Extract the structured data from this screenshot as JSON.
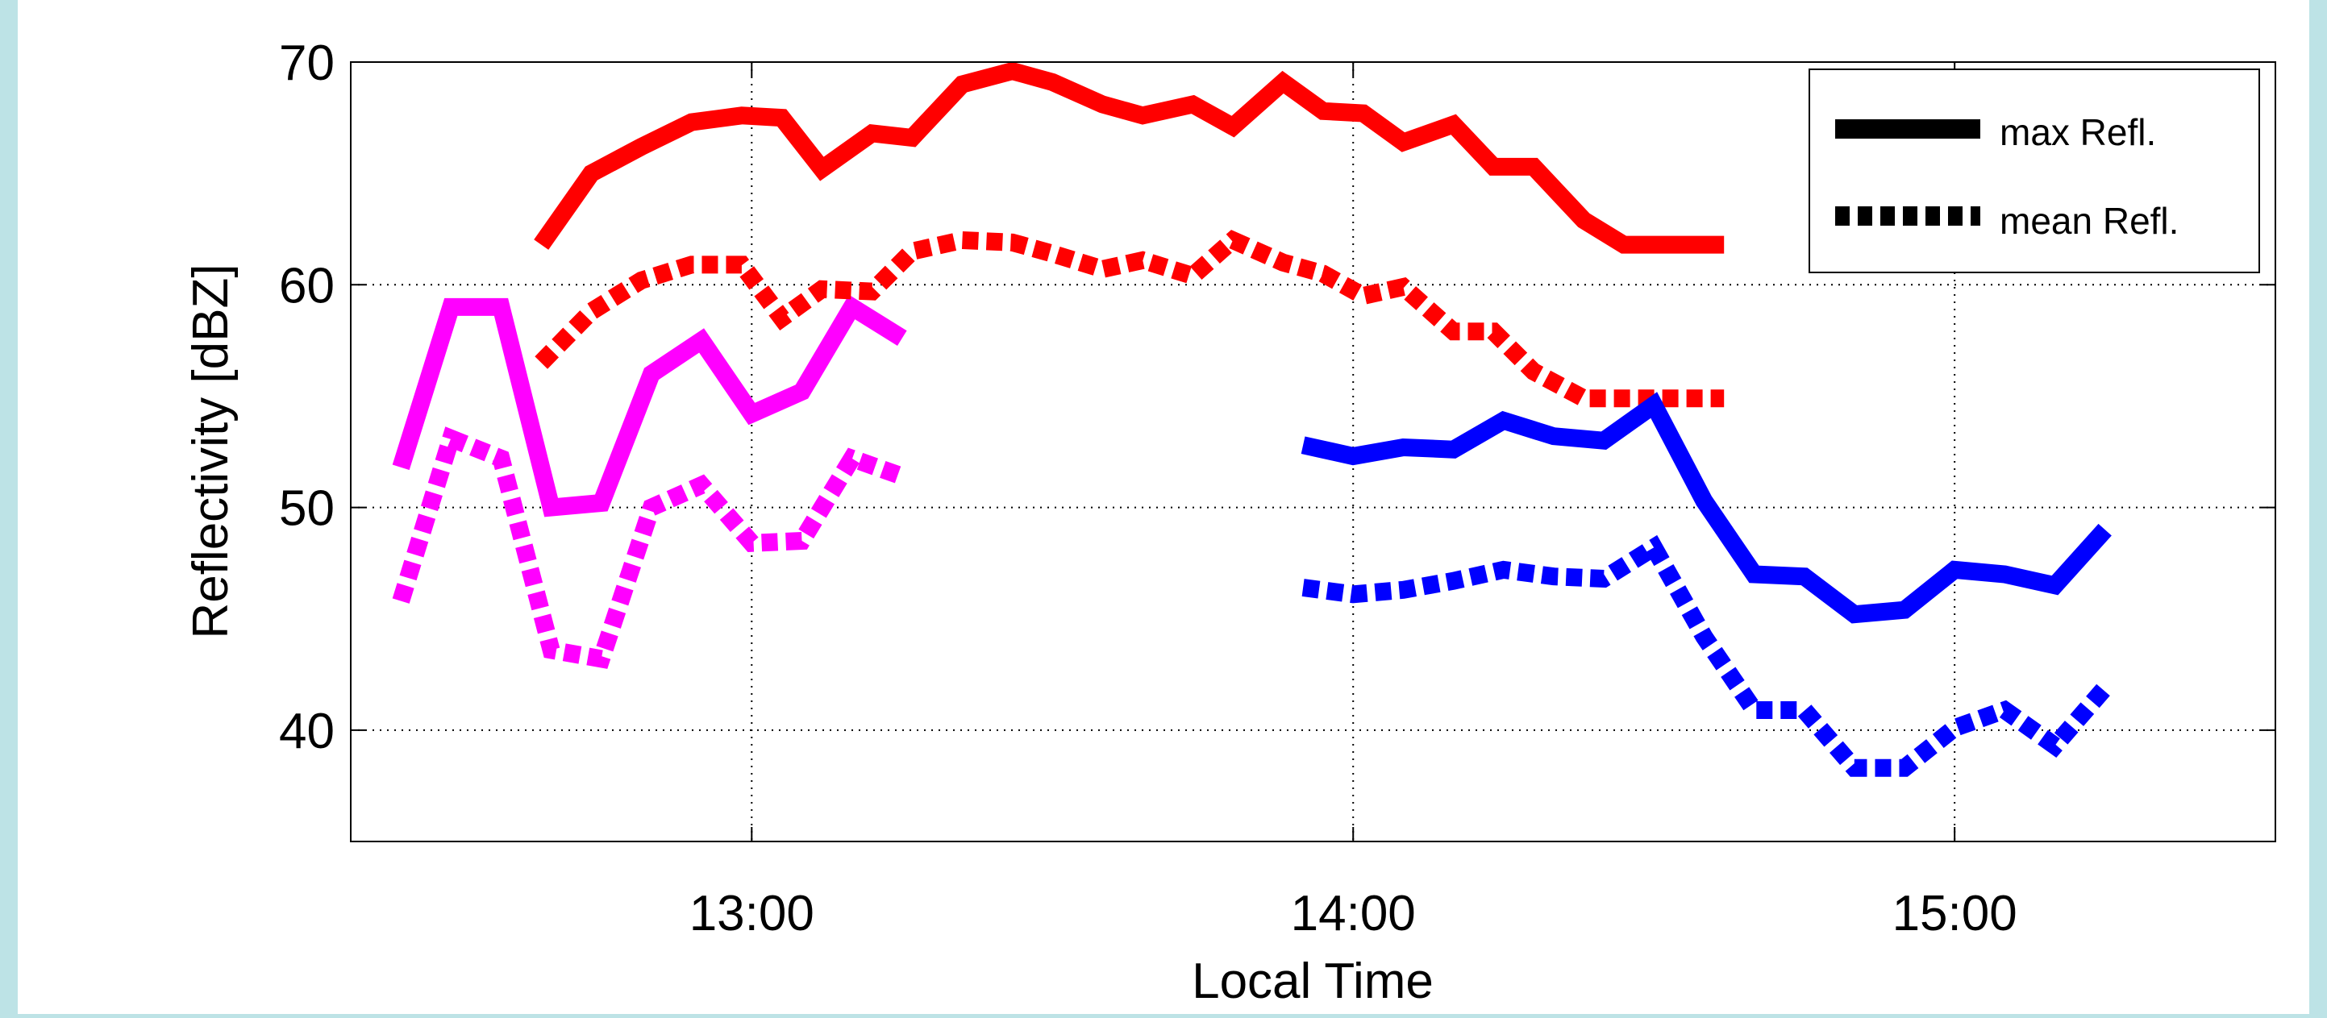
{
  "chart_data": {
    "type": "line",
    "title": "",
    "xlabel": "Local Time",
    "ylabel": "Reflectivity [dBZ]",
    "x_unit": "local time (HH:MM)",
    "xlim": [
      "12:20",
      "15:32"
    ],
    "ylim": [
      35,
      70
    ],
    "x_ticks": [
      {
        "time": "13:00",
        "label": "13:00"
      },
      {
        "time": "14:00",
        "label": "14:00"
      },
      {
        "time": "15:00",
        "label": "15:00"
      }
    ],
    "y_ticks": [
      {
        "value": 40,
        "label": "40"
      },
      {
        "value": 50,
        "label": "50"
      },
      {
        "value": 60,
        "label": "60"
      },
      {
        "value": 70,
        "label": "70"
      }
    ],
    "grid": true,
    "legend": {
      "placement": "top-right",
      "entries": [
        {
          "label": "max Refl.",
          "style": "solid"
        },
        {
          "label": "mean Refl.",
          "style": "dotted"
        }
      ]
    },
    "series": [
      {
        "color": "#ff00ff",
        "style": "solid",
        "x": [
          "12:25",
          "12:30",
          "12:35",
          "12:40",
          "12:45",
          "12:50",
          "12:55",
          "13:00",
          "13:05",
          "13:10",
          "13:15"
        ],
        "y": [
          51.8,
          59.0,
          59.0,
          50.0,
          50.2,
          56.0,
          57.5,
          54.2,
          55.2,
          59.0,
          57.6
        ]
      },
      {
        "color": "#ff00ff",
        "style": "dotted",
        "x": [
          "12:25",
          "12:30",
          "12:35",
          "12:40",
          "12:45",
          "12:50",
          "12:55",
          "13:00",
          "13:05",
          "13:10",
          "13:15"
        ],
        "y": [
          45.8,
          53.1,
          52.2,
          43.6,
          43.2,
          50.0,
          51.0,
          48.4,
          48.5,
          52.2,
          51.4
        ]
      },
      {
        "color": "#ff0000",
        "style": "solid",
        "x": [
          "12:39",
          "12:44",
          "12:49",
          "12:54",
          "12:59",
          "13:03",
          "13:07",
          "13:12",
          "13:16",
          "13:21",
          "13:26",
          "13:30",
          "13:35",
          "13:39",
          "13:44",
          "13:48",
          "13:53",
          "13:57",
          "14:01",
          "14:05",
          "14:10",
          "14:14",
          "14:18",
          "14:23",
          "14:27",
          "14:32",
          "14:37"
        ],
        "y": [
          61.8,
          65.0,
          66.2,
          67.3,
          67.6,
          67.5,
          65.2,
          66.8,
          66.6,
          69.0,
          69.6,
          69.1,
          68.1,
          67.6,
          68.1,
          67.1,
          69.1,
          67.8,
          67.7,
          66.4,
          67.2,
          65.3,
          65.3,
          62.9,
          61.8,
          61.8,
          61.8
        ]
      },
      {
        "color": "#ff0000",
        "style": "dotted",
        "x": [
          "12:39",
          "12:44",
          "12:49",
          "12:54",
          "12:59",
          "13:03",
          "13:07",
          "13:12",
          "13:16",
          "13:21",
          "13:26",
          "13:30",
          "13:35",
          "13:39",
          "13:44",
          "13:48",
          "13:53",
          "13:57",
          "14:01",
          "14:05",
          "14:10",
          "14:14",
          "14:18",
          "14:23",
          "14:27",
          "14:32",
          "14:37"
        ],
        "y": [
          56.5,
          58.8,
          60.2,
          60.9,
          60.9,
          58.5,
          59.8,
          59.7,
          61.5,
          62.0,
          61.9,
          61.4,
          60.7,
          61.1,
          60.4,
          62.0,
          61.0,
          60.5,
          59.5,
          59.9,
          57.9,
          57.9,
          56.1,
          54.9,
          54.9,
          54.9,
          54.9
        ]
      },
      {
        "color": "#0000ff",
        "style": "solid",
        "x": [
          "13:55",
          "14:00",
          "14:05",
          "14:10",
          "14:15",
          "14:20",
          "14:25",
          "14:30",
          "14:35",
          "14:40",
          "14:45",
          "14:50",
          "14:55",
          "15:00",
          "15:05",
          "15:10",
          "15:15"
        ],
        "y": [
          52.8,
          52.3,
          52.7,
          52.6,
          53.9,
          53.2,
          53.0,
          54.6,
          50.3,
          47.0,
          46.9,
          45.2,
          45.4,
          47.2,
          47.0,
          46.5,
          49.0
        ]
      },
      {
        "color": "#0000ff",
        "style": "dotted",
        "x": [
          "13:55",
          "14:00",
          "14:05",
          "14:10",
          "14:15",
          "14:20",
          "14:25",
          "14:30",
          "14:35",
          "14:40",
          "14:45",
          "14:50",
          "14:55",
          "15:00",
          "15:05",
          "15:10",
          "15:15"
        ],
        "y": [
          46.4,
          46.1,
          46.3,
          46.7,
          47.2,
          46.9,
          46.8,
          48.2,
          44.2,
          40.9,
          40.9,
          38.3,
          38.3,
          40.1,
          40.9,
          39.3,
          41.9
        ]
      }
    ]
  }
}
